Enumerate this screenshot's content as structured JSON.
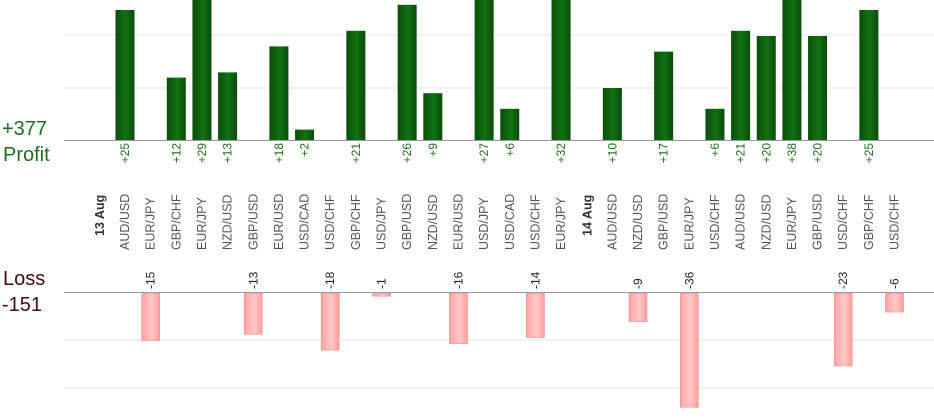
{
  "summary": {
    "profit_total": "+377",
    "profit_label": "Profit",
    "loss_label": "Loss",
    "loss_total": "-151"
  },
  "colors": {
    "profit": "#1a7a1a",
    "profit_dark": "#0b4f0b",
    "loss": "#ffb0b0",
    "loss_border": "#f08a8a",
    "profit_text": "#1e6e1e",
    "loss_text": "#4a0a0a",
    "grid": "#e6e6e6",
    "axis": "#999999"
  },
  "chart_data": {
    "type": "bar",
    "title": "",
    "xlabel": "",
    "ylabel": "",
    "date_groups": [
      {
        "label": "13 Aug",
        "start_index": 0
      },
      {
        "label": "14 Aug",
        "start_index": 19
      }
    ],
    "categories": [
      "AUD/USD",
      "EUR/JPY",
      "GBP/CHF",
      "EUR/JPY",
      "NZD/USD",
      "GBP/USD",
      "EUR/USD",
      "USD/CAD",
      "USD/CHF",
      "GBP/CHF",
      "USD/JPY",
      "GBP/USD",
      "NZD/USD",
      "EUR/USD",
      "USD/JPY",
      "USD/CAD",
      "USD/CHF",
      "EUR/JPY",
      "",
      "AUD/USD",
      "NZD/USD",
      "GBP/USD",
      "EUR/JPY",
      "USD/CHF",
      "AUD/USD",
      "NZD/USD",
      "EUR/JPY",
      "GBP/USD",
      "USD/CHF",
      "GBP/CHF",
      "USD/CHF"
    ],
    "values": [
      25,
      -15,
      12,
      29,
      13,
      -13,
      18,
      2,
      -18,
      21,
      -1,
      26,
      9,
      -16,
      27,
      6,
      -14,
      32,
      null,
      10,
      -9,
      17,
      -36,
      6,
      21,
      20,
      38,
      20,
      -23,
      25,
      -6
    ],
    "value_labels": [
      "+25",
      "-15",
      "+12",
      "+29",
      "+13",
      "-13",
      "+18",
      "+2",
      "-18",
      "+21",
      "-1",
      "+26",
      "+9",
      "-16",
      "+27",
      "+6",
      "-14",
      "+32",
      "",
      "+10",
      "-9",
      "+17",
      "-36",
      "+6",
      "+21",
      "+20",
      "+38",
      "+20",
      "-23",
      "+25",
      "-6"
    ],
    "grid": true
  }
}
